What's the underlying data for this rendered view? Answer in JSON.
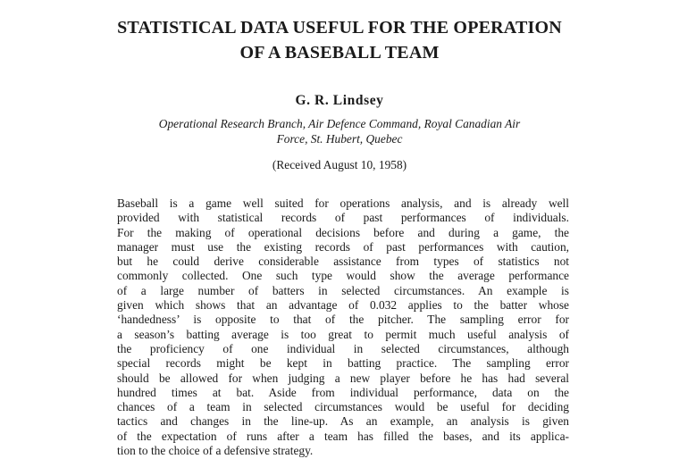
{
  "paper": {
    "title_lines": [
      "STATISTICAL DATA USEFUL FOR THE OPERATION",
      "OF A BASEBALL TEAM"
    ],
    "author": "G. R. Lindsey",
    "affiliation_lines": [
      "Operational Research Branch, Air Defence Command, Royal Canadian Air",
      "Force, St. Hubert, Quebec"
    ],
    "received": "(Received August 10, 1958)",
    "abstract_lines": [
      "Baseball is a game well suited for operations analysis, and is already well",
      "provided with statistical records of past performances of individuals.",
      "For the making of operational decisions before and during a game, the",
      "manager must use the existing records of past performances with caution,",
      "but he could derive considerable assistance from types of statistics not",
      "commonly collected.  One such type would show the average performance",
      "of a large number of batters in selected circumstances.  An example is",
      "given which shows that an advantage of 0.032 applies to the batter whose",
      "‘handedness’ is opposite to that of the pitcher.  The sampling error for",
      "a season’s batting average is too great to permit much useful analysis of",
      "the proficiency of one individual in selected circumstances, although",
      "special records might be kept in batting practice.  The sampling error",
      "should be allowed for when judging a new player before he has had several",
      "hundred times at bat.  Aside from individual performance, data on the",
      "chances of a team in selected circumstances would be useful for deciding",
      "tactics and changes in the line-up.  As an example, an analysis is given",
      "of the expectation of runs after a team has filled the bases, and its applica-",
      "tion to the choice of a defensive strategy."
    ]
  }
}
